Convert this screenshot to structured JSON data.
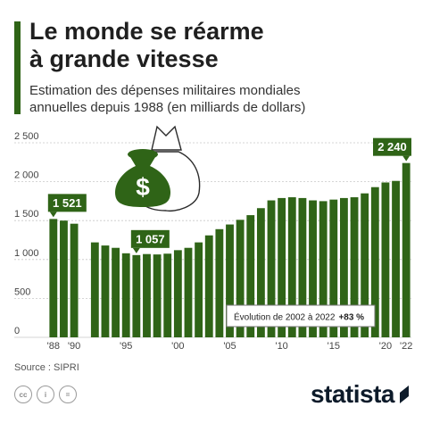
{
  "header": {
    "title_line1": "Le monde se réarme",
    "title_line2": "à grande vitesse",
    "subtitle_line1": "Estimation des dépenses militaires mondiales",
    "subtitle_line2": "annuelles depuis 1988 (en milliards de dollars)"
  },
  "footer": {
    "source": "Source : SIPRI",
    "license_icons": [
      "cc",
      "i",
      "="
    ],
    "brand": "statista"
  },
  "colors": {
    "bar": "#2f6417",
    "accent": "#2f6417",
    "grid": "#c8c8c8"
  },
  "icons": {
    "illustration": [
      "money-bag-icon",
      "white-bag-icon"
    ]
  },
  "chart_data": {
    "type": "bar",
    "ylim": [
      0,
      2500
    ],
    "yticks": [
      0,
      500,
      1000,
      1500,
      2000,
      2500
    ],
    "ytick_labels": [
      "0",
      "500",
      "1 000",
      "1 500",
      "2 000",
      "2 500"
    ],
    "grid": true,
    "x": [
      1988,
      1989,
      1990,
      1991,
      1992,
      1993,
      1994,
      1995,
      1996,
      1997,
      1998,
      1999,
      2000,
      2001,
      2002,
      2003,
      2004,
      2005,
      2006,
      2007,
      2008,
      2009,
      2010,
      2011,
      2012,
      2013,
      2014,
      2015,
      2016,
      2017,
      2018,
      2019,
      2020,
      2021,
      2022
    ],
    "values": [
      1521,
      1500,
      1460,
      null,
      1220,
      1180,
      1150,
      1080,
      1057,
      1070,
      1065,
      1075,
      1120,
      1150,
      1220,
      1310,
      1390,
      1450,
      1510,
      1570,
      1660,
      1760,
      1790,
      1800,
      1790,
      1760,
      1750,
      1770,
      1790,
      1800,
      1850,
      1930,
      1990,
      2010,
      2240
    ],
    "xtick_labels": [
      {
        "year": 1988,
        "label": "'88"
      },
      {
        "year": 1990,
        "label": "'90"
      },
      {
        "year": 1995,
        "label": "'95"
      },
      {
        "year": 2000,
        "label": "'00"
      },
      {
        "year": 2005,
        "label": "'05"
      },
      {
        "year": 2010,
        "label": "'10"
      },
      {
        "year": 2015,
        "label": "'15"
      },
      {
        "year": 2020,
        "label": "'20"
      },
      {
        "year": 2022,
        "label": "'22"
      }
    ],
    "callouts": [
      {
        "year": 1988,
        "label": "1 521"
      },
      {
        "year": 1996,
        "label": "1 057"
      },
      {
        "year": 2022,
        "label": "2 240"
      }
    ],
    "annotation": {
      "text": "Évolution de 2002 à 2022",
      "value": "+83 %"
    }
  }
}
